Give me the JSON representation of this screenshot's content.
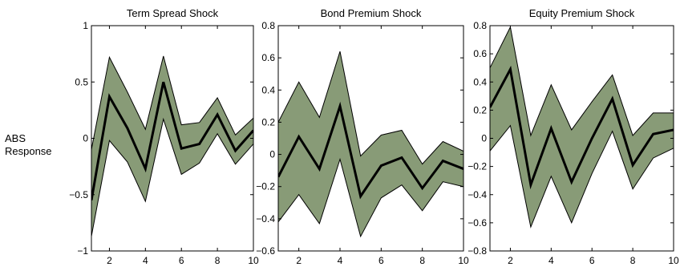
{
  "figure": {
    "ylabel_line1": "ABS",
    "ylabel_line2": "Response"
  },
  "chart_data": [
    {
      "type": "area",
      "title": "Term Spread Shock",
      "xlabel": "",
      "ylabel": "ABS Response",
      "xlim": [
        1,
        10
      ],
      "ylim": [
        -1,
        1
      ],
      "xticks": [
        2,
        4,
        6,
        8,
        10
      ],
      "yticks": [
        -1,
        -0.5,
        0,
        0.5,
        1
      ],
      "ytick_labels": [
        "−1",
        "−0.5",
        "0",
        "0.5",
        "1"
      ],
      "x": [
        1,
        2,
        3,
        4,
        5,
        6,
        7,
        8,
        9,
        10
      ],
      "series": [
        {
          "role": "median",
          "values": [
            -0.55,
            0.37,
            0.09,
            -0.27,
            0.5,
            -0.09,
            -0.05,
            0.21,
            -0.11,
            0.07
          ]
        },
        {
          "role": "upper",
          "values": [
            -0.1,
            0.72,
            0.41,
            0.08,
            0.73,
            0.12,
            0.14,
            0.36,
            0.03,
            0.18
          ]
        },
        {
          "role": "lower",
          "values": [
            -0.87,
            -0.02,
            -0.21,
            -0.56,
            0.17,
            -0.32,
            -0.22,
            0.04,
            -0.23,
            -0.05
          ]
        }
      ],
      "band_color": "#889b77",
      "line_color": "#000000"
    },
    {
      "type": "area",
      "title": "Bond Premium Shock",
      "xlabel": "",
      "ylabel": "",
      "xlim": [
        1,
        10
      ],
      "ylim": [
        -0.6,
        0.8
      ],
      "xticks": [
        2,
        4,
        6,
        8,
        10
      ],
      "yticks": [
        -0.6,
        -0.4,
        -0.2,
        0,
        0.2,
        0.4,
        0.6,
        0.8
      ],
      "ytick_labels": [
        "−0.6",
        "−0.4",
        "−0.2",
        "0",
        "0.2",
        "0.4",
        "0.6",
        "0.8"
      ],
      "x": [
        1,
        2,
        3,
        4,
        5,
        6,
        7,
        8,
        9,
        10
      ],
      "series": [
        {
          "role": "median",
          "values": [
            -0.14,
            0.11,
            -0.09,
            0.3,
            -0.26,
            -0.07,
            -0.02,
            -0.21,
            -0.04,
            -0.09
          ]
        },
        {
          "role": "upper",
          "values": [
            0.2,
            0.45,
            0.23,
            0.64,
            -0.01,
            0.12,
            0.15,
            -0.06,
            0.08,
            0.02
          ]
        },
        {
          "role": "lower",
          "values": [
            -0.42,
            -0.25,
            -0.43,
            -0.03,
            -0.51,
            -0.27,
            -0.19,
            -0.35,
            -0.17,
            -0.2
          ]
        }
      ],
      "band_color": "#889b77",
      "line_color": "#000000"
    },
    {
      "type": "area",
      "title": "Equity Premium Shock",
      "xlabel": "",
      "ylabel": "",
      "xlim": [
        1,
        10
      ],
      "ylim": [
        -0.8,
        0.8
      ],
      "xticks": [
        2,
        4,
        6,
        8,
        10
      ],
      "yticks": [
        -0.8,
        -0.6,
        -0.4,
        -0.2,
        0,
        0.2,
        0.4,
        0.6,
        0.8
      ],
      "ytick_labels": [
        "−0.8",
        "−0.6",
        "−0.4",
        "−0.2",
        "0",
        "0.2",
        "0.4",
        "0.6",
        "0.8"
      ],
      "x": [
        1,
        2,
        3,
        4,
        5,
        6,
        7,
        8,
        9,
        10
      ],
      "series": [
        {
          "role": "median",
          "values": [
            0.22,
            0.49,
            -0.33,
            0.07,
            -0.31,
            0.0,
            0.28,
            -0.19,
            0.03,
            0.06
          ]
        },
        {
          "role": "upper",
          "values": [
            0.5,
            0.79,
            0.02,
            0.38,
            0.06,
            0.26,
            0.45,
            0.02,
            0.18,
            0.18
          ]
        },
        {
          "role": "lower",
          "values": [
            -0.09,
            0.09,
            -0.63,
            -0.27,
            -0.6,
            -0.25,
            0.05,
            -0.36,
            -0.14,
            -0.07
          ]
        }
      ],
      "band_color": "#889b77",
      "line_color": "#000000"
    }
  ]
}
